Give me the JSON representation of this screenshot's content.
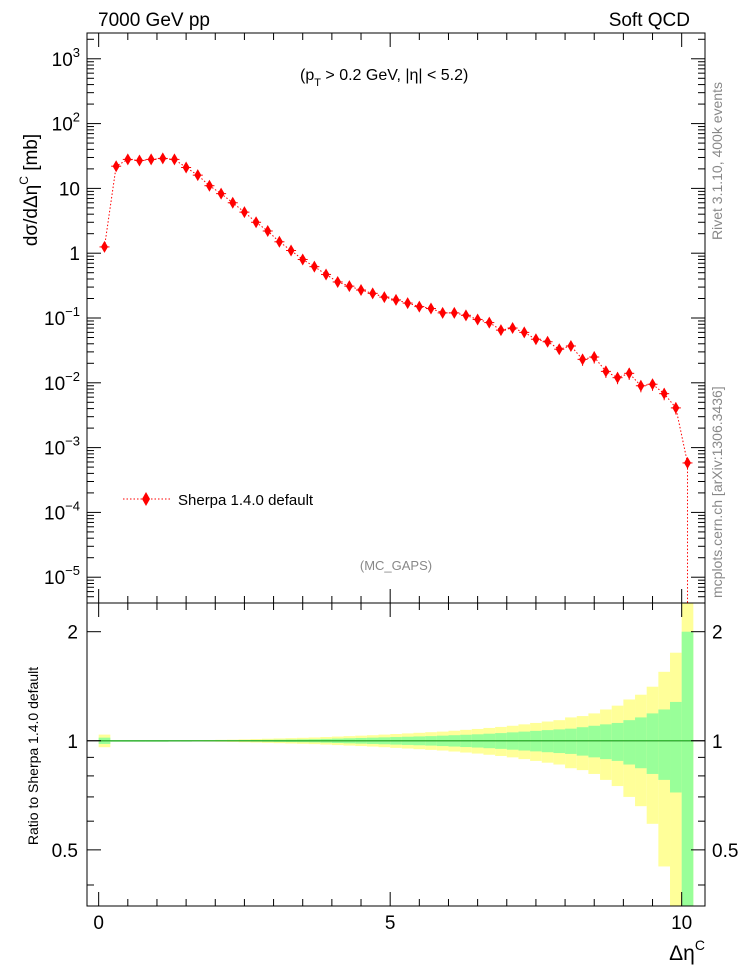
{
  "header": {
    "left": "7000 GeV pp",
    "right": "Soft QCD"
  },
  "main_panel": {
    "cut_label": "(p_T > 0.2 GeV, |η| < 5.2)",
    "cut_prefix": "(p",
    "cut_sub": "T",
    "cut_suffix": " > 0.2 GeV, |η| < 5.2)",
    "ylabel": "dσ/dΔη^C [mb]",
    "ylabel_main": "dσ/dΔη",
    "ylabel_sup": "C",
    "ylabel_unit": " [mb]",
    "analysis_tag": "(MC_GAPS)",
    "legend": "Sherpa 1.4.0 default"
  },
  "ratio_panel": {
    "ylabel": "Ratio to Sherpa 1.4.0 default",
    "yticks": [
      "0.5",
      "1",
      "2"
    ]
  },
  "xaxis": {
    "label": "Δη^C",
    "label_main": "Δη",
    "label_sup": "C",
    "ticks": [
      "0",
      "5",
      "10"
    ]
  },
  "side_text": {
    "rivet": "Rivet 3.1.10,  400k events",
    "mcplots": "mcplots.cern.ch [arXiv:1306.3436]"
  },
  "colors": {
    "series": "#ff0000",
    "band_inner": "#99ff99",
    "band_outer": "#ffff99",
    "axis": "#000000",
    "muted": "#888888"
  },
  "chart_data": {
    "type": "scatter",
    "title": "7000 GeV pp — Soft QCD",
    "xlabel": "Δη^C",
    "ylabel": "dσ/dΔη^C [mb]",
    "xlim": [
      -0.2,
      10.4
    ],
    "ylim": [
      4e-06,
      2500
    ],
    "yscale": "log",
    "legend_position": "middle-left",
    "series": [
      {
        "name": "Sherpa 1.4.0 default",
        "x": [
          0.1,
          0.3,
          0.5,
          0.7,
          0.9,
          1.1,
          1.3,
          1.5,
          1.7,
          1.9,
          2.1,
          2.3,
          2.5,
          2.7,
          2.9,
          3.1,
          3.3,
          3.5,
          3.7,
          3.9,
          4.1,
          4.3,
          4.5,
          4.7,
          4.9,
          5.1,
          5.3,
          5.5,
          5.7,
          5.9,
          6.1,
          6.3,
          6.5,
          6.7,
          6.9,
          7.1,
          7.3,
          7.5,
          7.7,
          7.9,
          8.1,
          8.3,
          8.5,
          8.7,
          8.9,
          9.1,
          9.3,
          9.5,
          9.7,
          9.9,
          10.1
        ],
        "values": [
          1.25,
          22,
          28,
          27,
          28,
          29,
          28,
          21,
          16,
          11,
          8.3,
          6.0,
          4.3,
          3.0,
          2.2,
          1.5,
          1.1,
          0.8,
          0.62,
          0.47,
          0.36,
          0.31,
          0.27,
          0.24,
          0.21,
          0.19,
          0.17,
          0.15,
          0.14,
          0.12,
          0.12,
          0.11,
          0.095,
          0.085,
          0.065,
          0.07,
          0.06,
          0.047,
          0.043,
          0.033,
          0.037,
          0.023,
          0.025,
          0.015,
          0.012,
          0.014,
          0.009,
          0.0095,
          0.0068,
          0.0041,
          0.00058
        ]
      }
    ],
    "ratio": {
      "ylabel": "Ratio to Sherpa 1.4.0 default",
      "ylim": [
        0.35,
        2.4
      ],
      "yscale": "log",
      "reference": 1,
      "bin_edges": [
        0,
        0.2,
        0.4,
        0.6,
        0.8,
        1.0,
        1.2,
        1.4,
        1.6,
        1.8,
        2.0,
        2.2,
        2.4,
        2.6,
        2.8,
        3.0,
        3.2,
        3.4,
        3.6,
        3.8,
        4.0,
        4.2,
        4.4,
        4.6,
        4.8,
        5.0,
        5.2,
        5.4,
        5.6,
        5.8,
        6.0,
        6.2,
        6.4,
        6.6,
        6.8,
        7.0,
        7.2,
        7.4,
        7.6,
        7.8,
        8.0,
        8.2,
        8.4,
        8.6,
        8.8,
        9.0,
        9.2,
        9.4,
        9.6,
        9.8,
        10.0,
        10.2
      ],
      "inner_band": [
        0.02,
        0.0,
        0.0,
        0.0,
        0.0,
        0.0,
        0.001,
        0.001,
        0.002,
        0.002,
        0.003,
        0.003,
        0.004,
        0.005,
        0.006,
        0.007,
        0.008,
        0.009,
        0.01,
        0.012,
        0.014,
        0.016,
        0.018,
        0.02,
        0.022,
        0.024,
        0.026,
        0.028,
        0.03,
        0.033,
        0.036,
        0.039,
        0.042,
        0.046,
        0.05,
        0.055,
        0.06,
        0.065,
        0.07,
        0.075,
        0.08,
        0.09,
        0.1,
        0.11,
        0.12,
        0.14,
        0.16,
        0.19,
        0.22,
        0.28,
        1.0
      ],
      "outer_band": [
        0.04,
        0.0,
        0.0,
        0.0,
        0.0,
        0.0,
        0.002,
        0.003,
        0.004,
        0.005,
        0.006,
        0.007,
        0.009,
        0.011,
        0.013,
        0.015,
        0.017,
        0.019,
        0.021,
        0.024,
        0.027,
        0.03,
        0.033,
        0.036,
        0.04,
        0.044,
        0.048,
        0.052,
        0.056,
        0.06,
        0.066,
        0.072,
        0.078,
        0.085,
        0.092,
        0.1,
        0.11,
        0.12,
        0.13,
        0.14,
        0.16,
        0.17,
        0.19,
        0.22,
        0.25,
        0.3,
        0.34,
        0.41,
        0.55,
        0.75,
        1.4
      ]
    }
  }
}
